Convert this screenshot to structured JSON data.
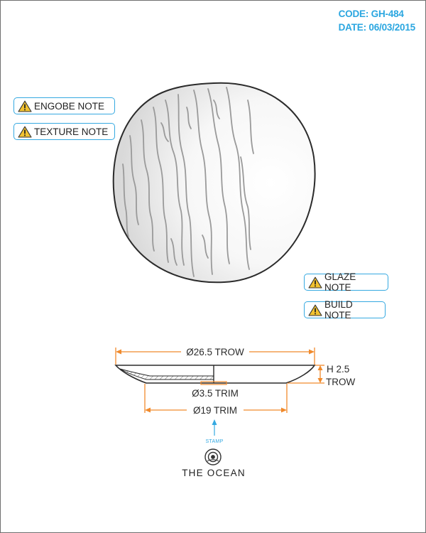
{
  "header": {
    "code": "CODE: GH-484",
    "date": "DATE: 06/03/2015"
  },
  "notes": {
    "engobe": "ENGOBE NOTE",
    "texture": "TEXTURE NOTE",
    "glaze": "GLAZE NOTE",
    "build": "BUILD NOTE"
  },
  "dimensions": {
    "outer_diameter": "Ø26.5 TROW",
    "height_line1": "H 2.5",
    "height_line2": "TROW",
    "foot_diameter": "Ø3.5 TRIM",
    "base_diameter": "Ø19 TRIM"
  },
  "stamp": {
    "label": "STAMP",
    "brand": "THE OCEAN"
  },
  "colors": {
    "accent": "#35a9e1",
    "dimension": "#f08a2c",
    "warning": "#f2c230",
    "outline": "#2b2b2b"
  },
  "icons": [
    "warning-icon",
    "stamp-logo-icon",
    "arrow-up-icon"
  ]
}
